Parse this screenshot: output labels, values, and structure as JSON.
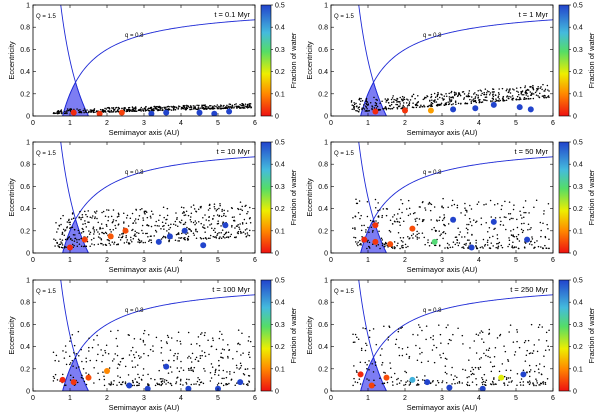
{
  "figure": {
    "colorbar_label": "Fraction of water",
    "colorbar_ticks": [
      "0",
      "0.1",
      "0.2",
      "0.3",
      "0.4",
      "0.5"
    ],
    "colors": {
      "curve": "#1f2bd6",
      "shade": "#6f6ff2",
      "point": "#000000"
    }
  },
  "chart_data": [
    {
      "type": "scatter",
      "panel": "t = 0.1 Myr",
      "time_label": "t = 0.1 Myr",
      "xlabel": "Semimayor axis (AU)",
      "ylabel": "Eccentricity",
      "xlim": [
        0,
        6
      ],
      "ylim": [
        0,
        1
      ],
      "x_ticks": [
        "0",
        "1",
        "2",
        "3",
        "4",
        "5",
        "6"
      ],
      "y_ticks": [
        "0",
        "0.2",
        "0.4",
        "0.6",
        "0.8",
        "1"
      ],
      "annotations": [
        "Q = 1.5",
        "q = 0.8"
      ],
      "bodies": [
        [
          1.1,
          0.03,
          0.02,
          1
        ],
        [
          1.8,
          0.02,
          0.03,
          1
        ],
        [
          2.4,
          0.03,
          0.04,
          1
        ],
        [
          3.2,
          0.02,
          0.5,
          1
        ],
        [
          3.6,
          0.03,
          0.5,
          1
        ],
        [
          4.5,
          0.03,
          0.5,
          1
        ],
        [
          4.9,
          0.02,
          0.5,
          1
        ],
        [
          5.3,
          0.04,
          0.5,
          1
        ]
      ],
      "field": {
        "n": 520,
        "a_min": 0.55,
        "a_max": 5.9,
        "e_base": 0.015,
        "e_slope": 0.01,
        "e_spread": 0.04,
        "seed": 11
      }
    },
    {
      "type": "scatter",
      "panel": "t = 1 Myr",
      "time_label": "t = 1 Myr",
      "xlabel": "Semimayor axis (AU)",
      "ylabel": "Eccentricity",
      "xlim": [
        0,
        6
      ],
      "ylim": [
        0,
        1
      ],
      "x_ticks": [
        "0",
        "1",
        "2",
        "3",
        "4",
        "5",
        "6"
      ],
      "y_ticks": [
        "0",
        "0.2",
        "0.4",
        "0.6",
        "0.8",
        "1"
      ],
      "annotations": [
        "Q = 1.5",
        "q = 0.8"
      ],
      "bodies": [
        [
          1.2,
          0.04,
          0.02,
          1
        ],
        [
          2.0,
          0.05,
          0.03,
          1
        ],
        [
          2.7,
          0.05,
          0.12,
          1
        ],
        [
          3.3,
          0.06,
          0.5,
          1
        ],
        [
          3.9,
          0.07,
          0.5,
          1
        ],
        [
          4.4,
          0.1,
          0.5,
          1
        ],
        [
          5.1,
          0.08,
          0.5,
          1
        ],
        [
          5.4,
          0.06,
          0.5,
          1
        ]
      ],
      "field": {
        "n": 520,
        "a_min": 0.55,
        "a_max": 5.9,
        "e_base": 0.02,
        "e_slope": 0.025,
        "e_spread": 0.12,
        "seed": 23
      }
    },
    {
      "type": "scatter",
      "panel": "t = 10 Myr",
      "time_label": "t = 10 Myr",
      "xlabel": "Semimayor axis (AU)",
      "ylabel": "Eccentricity",
      "xlim": [
        0,
        6
      ],
      "ylim": [
        0,
        1
      ],
      "x_ticks": [
        "0",
        "1",
        "2",
        "3",
        "4",
        "5",
        "6"
      ],
      "y_ticks": [
        "0",
        "0.2",
        "0.4",
        "0.6",
        "0.8",
        "1"
      ],
      "annotations": [
        "Q = 1.5",
        "q = 0.8"
      ],
      "bodies": [
        [
          1.0,
          0.05,
          0.02,
          1
        ],
        [
          1.4,
          0.12,
          0.04,
          1
        ],
        [
          2.1,
          0.15,
          0.06,
          1
        ],
        [
          2.5,
          0.2,
          0.05,
          1
        ],
        [
          3.4,
          0.1,
          0.5,
          1
        ],
        [
          3.7,
          0.15,
          0.5,
          1
        ],
        [
          4.1,
          0.2,
          0.5,
          1
        ],
        [
          4.6,
          0.07,
          0.5,
          1
        ],
        [
          5.2,
          0.25,
          0.5,
          1
        ]
      ],
      "field": {
        "n": 560,
        "a_min": 0.55,
        "a_max": 5.9,
        "e_base": 0.03,
        "e_slope": 0.02,
        "e_spread": 0.32,
        "seed": 37
      }
    },
    {
      "type": "scatter",
      "panel": "t = 50 Myr",
      "time_label": "t = 50 Myr",
      "xlabel": "Semimayor axis (AU)",
      "ylabel": "Eccentricity",
      "xlim": [
        0,
        6
      ],
      "ylim": [
        0,
        1
      ],
      "x_ticks": [
        "0",
        "1",
        "2",
        "3",
        "4",
        "5",
        "6"
      ],
      "y_ticks": [
        "0",
        "0.2",
        "0.4",
        "0.6",
        "0.8",
        "1"
      ],
      "annotations": [
        "Q = 1.5",
        "q = 0.8"
      ],
      "bodies": [
        [
          0.9,
          0.12,
          0.02,
          1
        ],
        [
          1.2,
          0.1,
          0.03,
          1
        ],
        [
          1.6,
          0.08,
          0.05,
          1
        ],
        [
          2.2,
          0.22,
          0.05,
          1
        ],
        [
          2.8,
          0.1,
          0.3,
          1
        ],
        [
          3.3,
          0.3,
          0.5,
          1
        ],
        [
          3.8,
          0.05,
          0.5,
          1
        ],
        [
          4.4,
          0.28,
          0.5,
          1
        ],
        [
          5.3,
          0.12,
          0.5,
          1
        ],
        [
          1.2,
          0.25,
          0.03,
          1
        ]
      ],
      "field": {
        "n": 430,
        "a_min": 0.55,
        "a_max": 5.9,
        "e_base": 0.04,
        "e_slope": 0.0,
        "e_spread": 0.45,
        "seed": 53
      }
    },
    {
      "type": "scatter",
      "panel": "t = 100 Myr",
      "time_label": "t = 100 Myr",
      "xlabel": "Semimayor axis (AU)",
      "ylabel": "Eccentricity",
      "xlim": [
        0,
        6
      ],
      "ylim": [
        0,
        1
      ],
      "x_ticks": [
        "0",
        "1",
        "2",
        "3",
        "4",
        "5",
        "6"
      ],
      "y_ticks": [
        "0",
        "0.2",
        "0.4",
        "0.6",
        "0.8",
        "1"
      ],
      "annotations": [
        "Q = 1.5",
        "q = 0.8"
      ],
      "bodies": [
        [
          0.8,
          0.1,
          0.02,
          1
        ],
        [
          1.1,
          0.08,
          0.03,
          1
        ],
        [
          1.5,
          0.12,
          0.05,
          1
        ],
        [
          2.0,
          0.18,
          0.1,
          1
        ],
        [
          2.6,
          0.05,
          0.5,
          1
        ],
        [
          3.1,
          0.02,
          0.5,
          1
        ],
        [
          3.6,
          0.22,
          0.5,
          1
        ],
        [
          4.2,
          0.02,
          0.5,
          1
        ],
        [
          5.0,
          0.02,
          0.5,
          1
        ],
        [
          5.6,
          0.08,
          0.5,
          1
        ]
      ],
      "field": {
        "n": 380,
        "a_min": 0.55,
        "a_max": 5.9,
        "e_base": 0.05,
        "e_slope": 0.0,
        "e_spread": 0.5,
        "seed": 71
      }
    },
    {
      "type": "scatter",
      "panel": "t = 250 Myr",
      "time_label": "t = 250 Myr",
      "xlabel": "Semimayor axis (AU)",
      "ylabel": "Eccentricity",
      "xlim": [
        0,
        6
      ],
      "ylim": [
        0,
        1
      ],
      "x_ticks": [
        "0",
        "1",
        "2",
        "3",
        "4",
        "5",
        "6"
      ],
      "y_ticks": [
        "0",
        "0.2",
        "0.4",
        "0.6",
        "0.8",
        "1"
      ],
      "annotations": [
        "Q = 1.5",
        "q = 0.8"
      ],
      "bodies": [
        [
          0.8,
          0.15,
          0.02,
          1
        ],
        [
          1.1,
          0.05,
          0.04,
          1
        ],
        [
          1.5,
          0.12,
          0.05,
          1
        ],
        [
          2.2,
          0.1,
          0.38,
          1
        ],
        [
          2.6,
          0.08,
          0.5,
          1
        ],
        [
          3.2,
          0.03,
          0.5,
          1
        ],
        [
          4.1,
          0.02,
          0.5,
          1
        ],
        [
          4.6,
          0.12,
          0.2,
          1
        ],
        [
          5.2,
          0.15,
          0.5,
          1
        ]
      ],
      "field": {
        "n": 340,
        "a_min": 0.55,
        "a_max": 5.9,
        "e_base": 0.05,
        "e_slope": 0.0,
        "e_spread": 0.55,
        "seed": 97
      }
    }
  ]
}
